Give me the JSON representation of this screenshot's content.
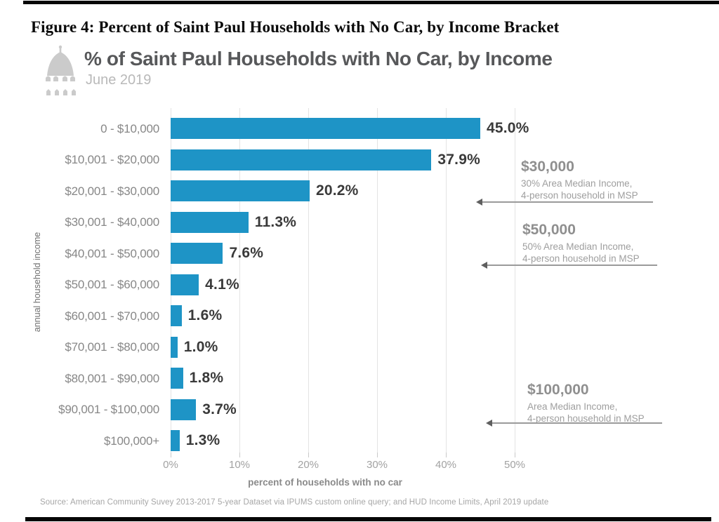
{
  "caption": {
    "text": "Figure 4: Percent of Saint Paul Households with No Car, by Income Bracket"
  },
  "header": {
    "title": "% of Saint Paul Households with No Car, by Income",
    "subtitle": "June 2019",
    "logo": "saint-paul-capitol-dome-logo"
  },
  "chart_data": {
    "type": "bar",
    "orientation": "horizontal",
    "title": "% of Saint Paul Households with No Car, by Income",
    "categories": [
      "0 - $10,000",
      "$10,001 - $20,000",
      "$20,001 - $30,000",
      "$30,001 - $40,000",
      "$40,001 - $50,000",
      "$50,001 - $60,000",
      "$60,001 - $70,000",
      "$70,001 - $80,000",
      "$80,001 - $90,000",
      "$90,001 - $100,000",
      "$100,000+"
    ],
    "values": [
      45.0,
      37.9,
      20.2,
      11.3,
      7.6,
      4.1,
      1.6,
      1.0,
      1.8,
      3.7,
      1.3
    ],
    "value_labels": [
      "45.0%",
      "37.9%",
      "20.2%",
      "11.3%",
      "7.6%",
      "4.1%",
      "1.6%",
      "1.0%",
      "1.8%",
      "3.7%",
      "1.3%"
    ],
    "xlabel": "percent of households with no car",
    "ylabel": "annual household income",
    "x_ticks": [
      "0%",
      "10%",
      "20%",
      "30%",
      "40%",
      "50%"
    ],
    "x_tick_values": [
      0,
      10,
      20,
      30,
      40,
      50
    ],
    "xlim": [
      0,
      50
    ],
    "grid": true,
    "legend": false,
    "bar_color": "#1e94c6",
    "grid_color": "#e3e3e3"
  },
  "annotations": [
    {
      "heading": "$30,000",
      "line1": "30% Area Median Income,",
      "line2": "4-person household in MSP"
    },
    {
      "heading": "$50,000",
      "line1": "50% Area Median Income,",
      "line2": "4-person household in MSP"
    },
    {
      "heading": "$100,000",
      "line1": "Area Median Income,",
      "line2": "4-person household in MSP"
    }
  ],
  "footer": {
    "source": "Source: American Community Suvey 2013-2017 5-year Dataset via IPUMS custom online query; and HUD Income Limits, April 2019 update"
  }
}
